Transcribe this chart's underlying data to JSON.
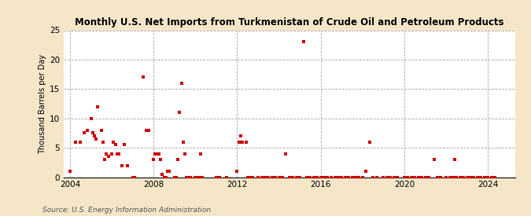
{
  "title": "Monthly U.S. Net Imports from Turkmenistan of Crude Oil and Petroleum Products",
  "ylabel": "Thousand Barrels per Day",
  "source": "Source: U.S. Energy Information Administration",
  "fig_background_color": "#f5e6c8",
  "plot_background_color": "#ffffff",
  "point_color": "#cc0000",
  "ylim": [
    0,
    25
  ],
  "yticks": [
    0,
    5,
    10,
    15,
    20,
    25
  ],
  "xlim_start": 2003.7,
  "xlim_end": 2025.3,
  "xticks": [
    2004,
    2008,
    2012,
    2016,
    2020,
    2024
  ],
  "data_points": [
    [
      2004.0,
      1.0
    ],
    [
      2004.25,
      6.0
    ],
    [
      2004.5,
      6.0
    ],
    [
      2004.67,
      7.5
    ],
    [
      2004.83,
      8.0
    ],
    [
      2005.0,
      10.0
    ],
    [
      2005.08,
      7.5
    ],
    [
      2005.17,
      7.0
    ],
    [
      2005.25,
      6.5
    ],
    [
      2005.33,
      12.0
    ],
    [
      2005.5,
      8.0
    ],
    [
      2005.58,
      6.0
    ],
    [
      2005.67,
      3.0
    ],
    [
      2005.75,
      4.0
    ],
    [
      2005.83,
      3.5
    ],
    [
      2006.0,
      4.0
    ],
    [
      2006.08,
      6.0
    ],
    [
      2006.17,
      5.5
    ],
    [
      2006.25,
      4.0
    ],
    [
      2006.33,
      4.0
    ],
    [
      2006.5,
      2.0
    ],
    [
      2006.58,
      5.5
    ],
    [
      2006.75,
      2.0
    ],
    [
      2007.0,
      0.0
    ],
    [
      2007.08,
      0.0
    ],
    [
      2007.5,
      17.0
    ],
    [
      2007.67,
      8.0
    ],
    [
      2007.75,
      8.0
    ],
    [
      2008.0,
      3.0
    ],
    [
      2008.08,
      4.0
    ],
    [
      2008.17,
      4.0
    ],
    [
      2008.25,
      4.0
    ],
    [
      2008.33,
      3.0
    ],
    [
      2008.42,
      0.5
    ],
    [
      2008.5,
      0.0
    ],
    [
      2008.58,
      0.0
    ],
    [
      2008.67,
      1.0
    ],
    [
      2008.75,
      1.0
    ],
    [
      2009.0,
      0.0
    ],
    [
      2009.08,
      0.0
    ],
    [
      2009.17,
      3.0
    ],
    [
      2009.25,
      11.0
    ],
    [
      2009.33,
      16.0
    ],
    [
      2009.42,
      6.0
    ],
    [
      2009.5,
      4.0
    ],
    [
      2009.58,
      0.0
    ],
    [
      2009.67,
      0.0
    ],
    [
      2009.75,
      0.0
    ],
    [
      2010.0,
      0.0
    ],
    [
      2010.08,
      0.0
    ],
    [
      2010.17,
      0.0
    ],
    [
      2010.25,
      4.0
    ],
    [
      2010.33,
      0.0
    ],
    [
      2011.0,
      0.0
    ],
    [
      2011.17,
      0.0
    ],
    [
      2011.5,
      0.0
    ],
    [
      2012.0,
      1.0
    ],
    [
      2012.08,
      6.0
    ],
    [
      2012.17,
      7.0
    ],
    [
      2012.25,
      6.0
    ],
    [
      2012.42,
      6.0
    ],
    [
      2012.5,
      0.0
    ],
    [
      2012.58,
      0.0
    ],
    [
      2012.67,
      0.0
    ],
    [
      2012.75,
      0.0
    ],
    [
      2013.0,
      0.0
    ],
    [
      2013.17,
      0.0
    ],
    [
      2013.33,
      0.0
    ],
    [
      2013.5,
      0.0
    ],
    [
      2013.67,
      0.0
    ],
    [
      2013.83,
      0.0
    ],
    [
      2014.0,
      0.0
    ],
    [
      2014.17,
      0.0
    ],
    [
      2014.33,
      4.0
    ],
    [
      2014.5,
      0.0
    ],
    [
      2014.67,
      0.0
    ],
    [
      2014.83,
      0.0
    ],
    [
      2015.0,
      0.0
    ],
    [
      2015.17,
      23.0
    ],
    [
      2015.33,
      0.0
    ],
    [
      2015.5,
      0.0
    ],
    [
      2015.67,
      0.0
    ],
    [
      2015.83,
      0.0
    ],
    [
      2016.0,
      0.0
    ],
    [
      2016.17,
      0.0
    ],
    [
      2016.33,
      0.0
    ],
    [
      2016.5,
      0.0
    ],
    [
      2016.67,
      0.0
    ],
    [
      2016.83,
      0.0
    ],
    [
      2017.0,
      0.0
    ],
    [
      2017.17,
      0.0
    ],
    [
      2017.33,
      0.0
    ],
    [
      2017.5,
      0.0
    ],
    [
      2017.67,
      0.0
    ],
    [
      2017.83,
      0.0
    ],
    [
      2018.0,
      0.0
    ],
    [
      2018.17,
      1.0
    ],
    [
      2018.33,
      6.0
    ],
    [
      2018.5,
      0.0
    ],
    [
      2018.67,
      0.0
    ],
    [
      2019.0,
      0.0
    ],
    [
      2019.17,
      0.0
    ],
    [
      2019.33,
      0.0
    ],
    [
      2019.5,
      0.0
    ],
    [
      2019.67,
      0.0
    ],
    [
      2020.0,
      0.0
    ],
    [
      2020.17,
      0.0
    ],
    [
      2020.33,
      0.0
    ],
    [
      2020.5,
      0.0
    ],
    [
      2020.67,
      0.0
    ],
    [
      2020.83,
      0.0
    ],
    [
      2021.0,
      0.0
    ],
    [
      2021.17,
      0.0
    ],
    [
      2021.42,
      3.0
    ],
    [
      2021.58,
      0.0
    ],
    [
      2021.75,
      0.0
    ],
    [
      2022.0,
      0.0
    ],
    [
      2022.17,
      0.0
    ],
    [
      2022.33,
      0.0
    ],
    [
      2022.42,
      3.0
    ],
    [
      2022.5,
      0.0
    ],
    [
      2022.67,
      0.0
    ],
    [
      2022.83,
      0.0
    ],
    [
      2023.0,
      0.0
    ],
    [
      2023.17,
      0.0
    ],
    [
      2023.33,
      0.0
    ],
    [
      2023.5,
      0.0
    ],
    [
      2023.67,
      0.0
    ],
    [
      2023.83,
      0.0
    ],
    [
      2024.0,
      0.0
    ],
    [
      2024.17,
      0.0
    ],
    [
      2024.33,
      0.0
    ]
  ]
}
